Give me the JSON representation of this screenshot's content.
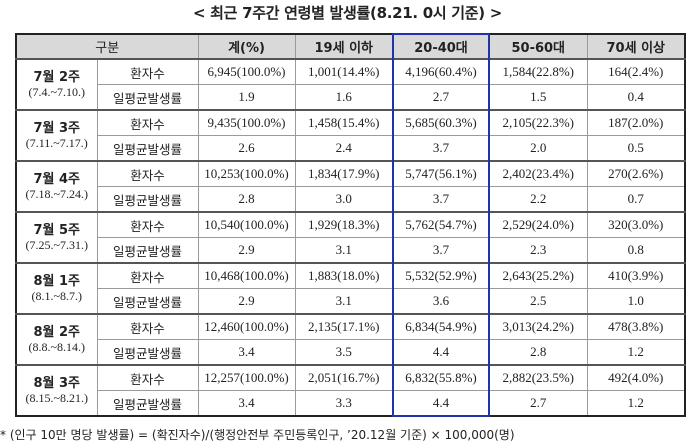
{
  "title": "< 최근 7주간 연령별 발생률(8.21. 0시 기준) >",
  "table": {
    "headers": [
      "구분",
      "계(%)",
      "19세 이하",
      "20-40대",
      "50-60대",
      "70세 이상"
    ],
    "row_labels": [
      "환자수",
      "일평균발생률"
    ],
    "highlight_column": "20-40대",
    "highlight_color": "#2233aa",
    "weeks": [
      {
        "name": "7월 2주",
        "range": "(7.4.~7.10.)",
        "patients": [
          "6,945(100.0%)",
          "1,001(14.4%)",
          "4,196(60.4%)",
          "1,584(22.8%)",
          "164(2.4%)"
        ],
        "rates": [
          "1.9",
          "1.6",
          "2.7",
          "1.5",
          "0.4"
        ]
      },
      {
        "name": "7월 3주",
        "range": "(7.11.~7.17.)",
        "patients": [
          "9,435(100.0%)",
          "1,458(15.4%)",
          "5,685(60.3%)",
          "2,105(22.3%)",
          "187(2.0%)"
        ],
        "rates": [
          "2.6",
          "2.4",
          "3.7",
          "2.0",
          "0.5"
        ]
      },
      {
        "name": "7월 4주",
        "range": "(7.18.~7.24.)",
        "patients": [
          "10,253(100.0%)",
          "1,834(17.9%)",
          "5,747(56.1%)",
          "2,402(23.4%)",
          "270(2.6%)"
        ],
        "rates": [
          "2.8",
          "3.0",
          "3.7",
          "2.2",
          "0.7"
        ]
      },
      {
        "name": "7월 5주",
        "range": "(7.25.~7.31.)",
        "patients": [
          "10,540(100.0%)",
          "1,929(18.3%)",
          "5,762(54.7%)",
          "2,529(24.0%)",
          "320(3.0%)"
        ],
        "rates": [
          "2.9",
          "3.1",
          "3.7",
          "2.3",
          "0.8"
        ]
      },
      {
        "name": "8월 1주",
        "range": "(8.1.~8.7.)",
        "patients": [
          "10,468(100.0%)",
          "1,883(18.0%)",
          "5,532(52.9%)",
          "2,643(25.2%)",
          "410(3.9%)"
        ],
        "rates": [
          "2.9",
          "3.1",
          "3.6",
          "2.5",
          "1.0"
        ]
      },
      {
        "name": "8월 2주",
        "range": "(8.8.~8.14.)",
        "patients": [
          "12,460(100.0%)",
          "2,135(17.1%)",
          "6,834(54.9%)",
          "3,013(24.2%)",
          "478(3.8%)"
        ],
        "rates": [
          "3.4",
          "3.5",
          "4.4",
          "2.8",
          "1.2"
        ]
      },
      {
        "name": "8월 3주",
        "range": "(8.15.~8.21.)",
        "patients": [
          "12,257(100.0%)",
          "2,051(16.7%)",
          "6,832(55.8%)",
          "2,882(23.5%)",
          "492(4.0%)"
        ],
        "rates": [
          "3.4",
          "3.3",
          "4.4",
          "2.7",
          "1.2"
        ]
      }
    ]
  },
  "footnote": "* (인구 10만 명당 발생률) = (확진자수)/(행정안전부 주민등록인구, ’20.12월 기준) × 100,000(명)"
}
